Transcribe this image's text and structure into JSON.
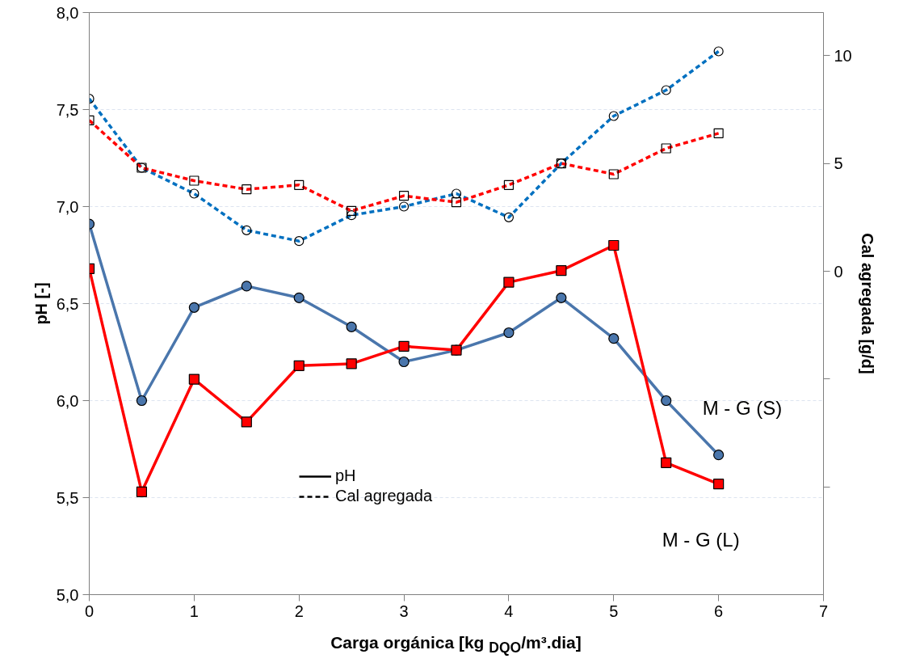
{
  "chart_data": {
    "type": "line",
    "xlabel": "Carga orgánica [kg $_{DQO}$/m³.dia]",
    "ylabel": "pH [-]",
    "y2label": "Cal agregada [g/d]",
    "x": [
      0,
      0.5,
      1,
      1.5,
      2,
      2.5,
      3,
      3.5,
      4,
      4.5,
      5,
      5.5,
      6
    ],
    "series": [
      {
        "name": "M - G (S)",
        "color": "#4a76ac",
        "marker": "circle",
        "line_style": "solid",
        "values": [
          6.91,
          6.0,
          6.48,
          6.59,
          6.53,
          6.38,
          6.2,
          6.26,
          6.35,
          6.53,
          6.32,
          6.0,
          5.72
        ]
      },
      {
        "name": "M - G (L)",
        "color": "#ff0000",
        "marker": "square",
        "line_style": "solid",
        "values": [
          6.68,
          5.53,
          6.11,
          5.89,
          6.18,
          6.19,
          6.28,
          6.26,
          6.61,
          6.67,
          6.8,
          5.68,
          5.57
        ]
      },
      {
        "color": "#0070c0",
        "marker": "circle",
        "line_style": "dashed",
        "axis": "y2",
        "values": [
          8.0,
          4.8,
          3.6,
          1.9,
          1.4,
          2.6,
          3.0,
          3.6,
          2.5,
          5.0,
          7.2,
          8.4,
          10.2
        ]
      },
      {
        "color": "#ff0000",
        "marker": "square",
        "line_style": "dashed",
        "axis": "y2",
        "values": [
          7.0,
          4.8,
          4.2,
          3.8,
          4.0,
          2.8,
          3.5,
          3.2,
          4.0,
          5.0,
          4.5,
          5.7,
          6.4
        ]
      }
    ],
    "xlim": [
      0,
      7
    ],
    "xticks": [
      0,
      1,
      2,
      3,
      4,
      5,
      6,
      7
    ],
    "ylim": [
      5,
      8
    ],
    "yticks": [
      {
        "value": 5,
        "label": "5,0"
      },
      {
        "value": 5.5,
        "label": "5,5"
      },
      {
        "value": 6,
        "label": "6,0"
      },
      {
        "value": 6.5,
        "label": "6,5"
      },
      {
        "value": 7,
        "label": "7,0"
      },
      {
        "value": 7.5,
        "label": "7,5"
      },
      {
        "value": 8,
        "label": "8,0"
      }
    ],
    "y2lim": [
      -15,
      12
    ],
    "y2ticks": [
      {
        "value": -10,
        "label": null
      },
      {
        "value": -5,
        "label": null
      },
      0,
      5,
      10
    ],
    "annotations": [
      "pH",
      "Cal agregada"
    ],
    "grid": "y",
    "legend": "bottom"
  }
}
